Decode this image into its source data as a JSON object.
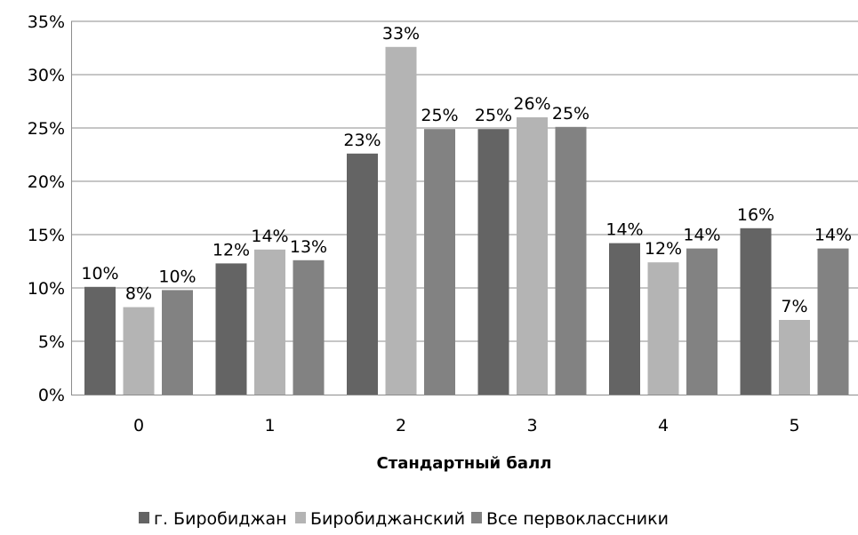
{
  "chart_data": {
    "type": "bar",
    "categories": [
      "0",
      "1",
      "2",
      "3",
      "4",
      "5"
    ],
    "series": [
      {
        "name": "г. Биробиджан",
        "values": [
          10.1,
          12.3,
          22.6,
          24.9,
          14.2,
          15.6
        ],
        "labels": [
          "10%",
          "12%",
          "23%",
          "25%",
          "14%",
          "16%"
        ],
        "color": "#646464"
      },
      {
        "name": "Биробиджанский",
        "values": [
          8.2,
          13.6,
          32.6,
          26.0,
          12.4,
          7.0
        ],
        "labels": [
          "8%",
          "14%",
          "33%",
          "26%",
          "12%",
          "7%"
        ],
        "color": "#b4b4b4"
      },
      {
        "name": "Все первоклассники",
        "values": [
          9.8,
          12.6,
          24.9,
          25.1,
          13.7,
          13.7
        ],
        "labels": [
          "10%",
          "13%",
          "25%",
          "25%",
          "14%",
          "14%"
        ],
        "color": "#828282"
      }
    ],
    "title": "",
    "xlabel": "Стандартный балл",
    "ylabel": "",
    "ylim": [
      0,
      35
    ],
    "yticks": [
      "0%",
      "5%",
      "10%",
      "15%",
      "20%",
      "25%",
      "30%",
      "35%"
    ],
    "grid": true,
    "legend_position": "bottom"
  }
}
